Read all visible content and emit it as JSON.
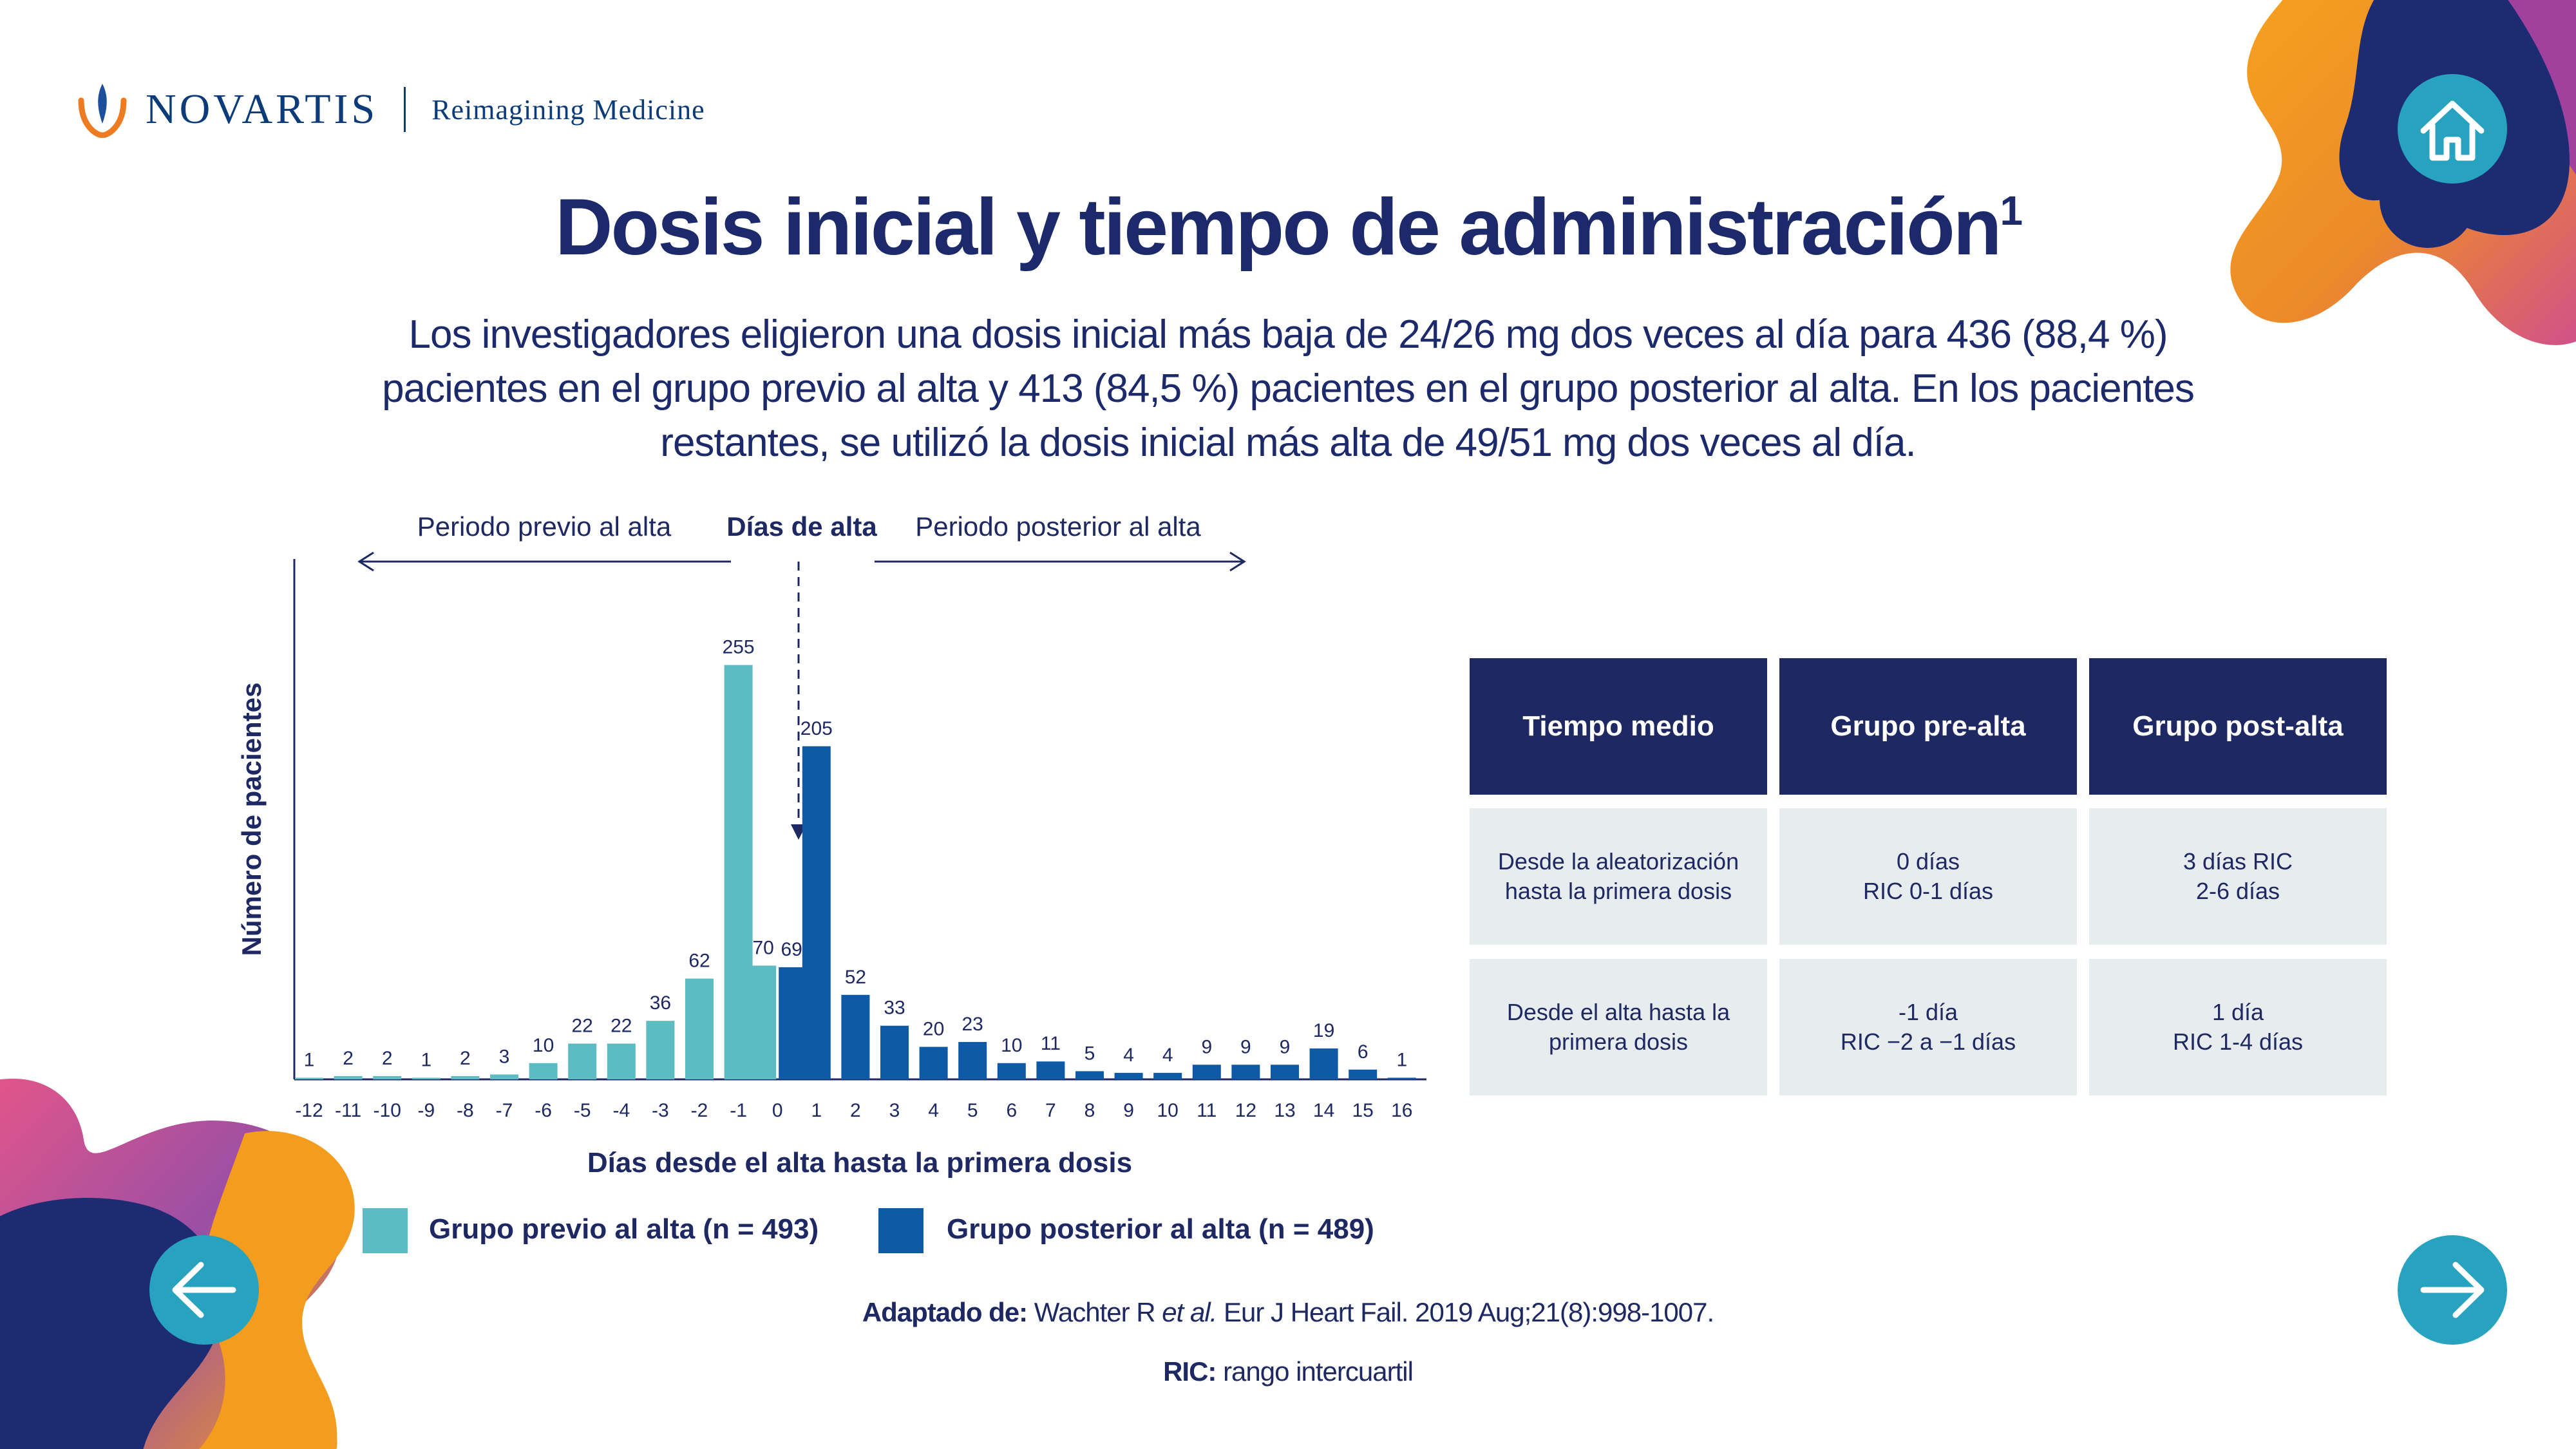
{
  "header": {
    "brand": "NOVARTIS",
    "tagline": "Reimagining Medicine"
  },
  "title": "Dosis inicial y tiempo de administración",
  "title_sup": "1",
  "intro_lines": [
    "Los investigadores eligieron una dosis inicial más baja de 24/26 mg dos veces al día para 436 (88,4 %)",
    "pacientes en el grupo previo al alta y 413 (84,5 %) pacientes en el grupo posterior al alta. En los pacientes",
    "restantes, se utilizó la dosis inicial más alta de 49/51 mg dos veces al día."
  ],
  "chart_data": {
    "type": "bar",
    "ylabel": "Número de pacientes",
    "xlabel": "Días desde el alta hasta la primera dosis",
    "annotations": {
      "pre": "Periodo previo al alta",
      "discharge": "Días de alta",
      "post": "Periodo posterior al alta"
    },
    "categories": [
      "-12",
      "-11",
      "-10",
      "-9",
      "-8",
      "-7",
      "-6",
      "-5",
      "-4",
      "-3",
      "-2",
      "-1",
      "0",
      "1",
      "2",
      "3",
      "4",
      "5",
      "6",
      "7",
      "8",
      "9",
      "10",
      "11",
      "12",
      "13",
      "14",
      "15",
      "16"
    ],
    "series": [
      {
        "name": "Grupo previo al alta (n = 493)",
        "color": "#5dbcc3",
        "points": [
          [
            "-12",
            1
          ],
          [
            "-11",
            2
          ],
          [
            "-10",
            2
          ],
          [
            "-9",
            1
          ],
          [
            "-8",
            2
          ],
          [
            "-7",
            3
          ],
          [
            "-6",
            10
          ],
          [
            "-5",
            22
          ],
          [
            "-4",
            22
          ],
          [
            "-3",
            36
          ],
          [
            "-2",
            62
          ],
          [
            "-1",
            255
          ],
          [
            "0",
            70
          ]
        ]
      },
      {
        "name": "Grupo posterior al alta (n = 489)",
        "color": "#0e5aa7",
        "points": [
          [
            "0",
            69
          ],
          [
            "1",
            205
          ],
          [
            "2",
            52
          ],
          [
            "3",
            33
          ],
          [
            "4",
            20
          ],
          [
            "5",
            23
          ],
          [
            "6",
            10
          ],
          [
            "7",
            11
          ],
          [
            "8",
            5
          ],
          [
            "9",
            4
          ],
          [
            "10",
            4
          ],
          [
            "11",
            9
          ],
          [
            "12",
            9
          ],
          [
            "13",
            9
          ],
          [
            "14",
            19
          ],
          [
            "15",
            6
          ],
          [
            "16",
            1
          ]
        ]
      }
    ],
    "ylim": [
      0,
      260
    ]
  },
  "table": {
    "headers": [
      "Tiempo medio",
      "Grupo pre-alta",
      "Grupo post-alta"
    ],
    "rows": [
      [
        [
          "Desde la aleatorización",
          "hasta la primera dosis"
        ],
        [
          "0 días",
          "RIC 0-1 días"
        ],
        [
          "3 días RIC",
          "2-6 días"
        ]
      ],
      [
        [
          "Desde el alta hasta la",
          "primera dosis"
        ],
        [
          "-1 día",
          "RIC −2 a −1 días"
        ],
        [
          "1 día",
          "RIC 1-4 días"
        ]
      ]
    ]
  },
  "footnotes": {
    "source_label": "Adaptado de:",
    "source_pre": " Wachter R ",
    "source_italic": "et al.",
    "source_post": " Eur J Heart Fail. 2019 Aug;21(8):998-1007.",
    "ric_label": "RIC:",
    "ric_text": " rango intercuartil"
  },
  "nav": {
    "home": "home-icon",
    "back": "arrow-left-icon",
    "next": "arrow-right-icon"
  },
  "colors": {
    "navy": "#1e2862",
    "pre": "#5dbcc3",
    "post": "#0e5aa7",
    "cell": "#e7ecee"
  }
}
